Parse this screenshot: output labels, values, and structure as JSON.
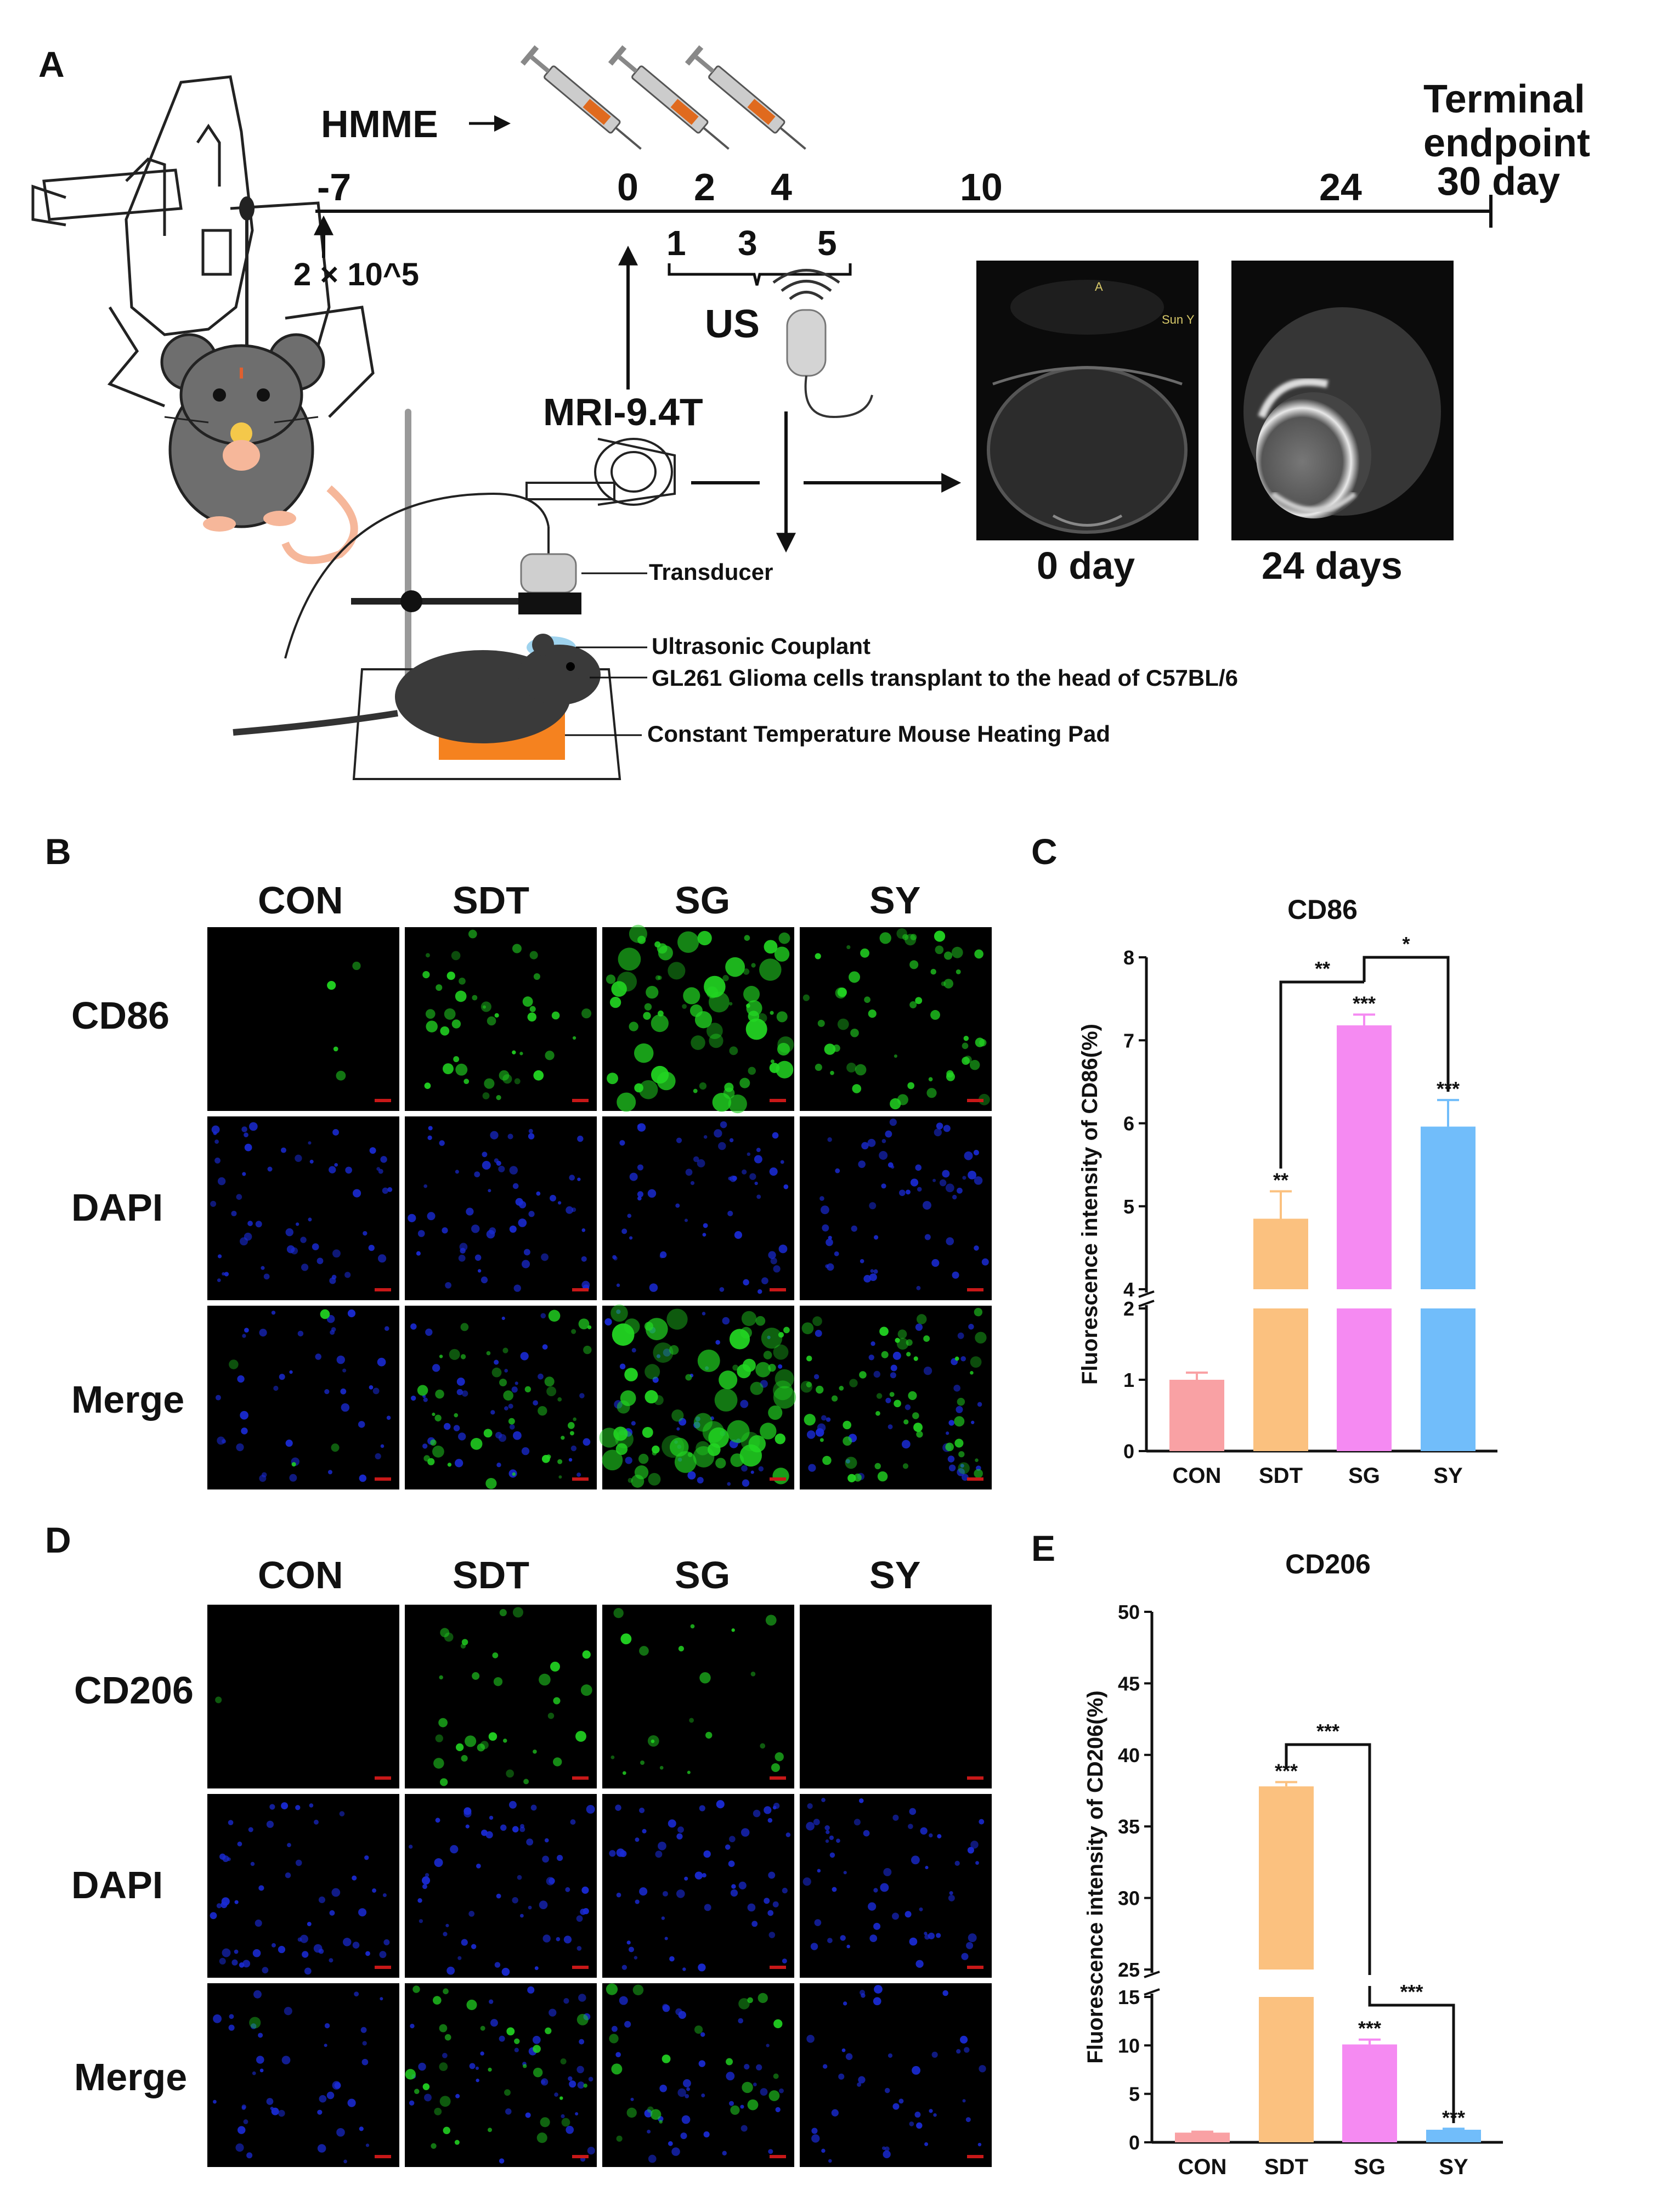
{
  "panels": {
    "a": "A",
    "b": "B",
    "c": "C",
    "d": "D",
    "e": "E"
  },
  "timeline": {
    "drug": "HMME",
    "ticks": [
      "-7",
      "0",
      "2",
      "4",
      "10",
      "24"
    ],
    "end_label_1": "Terminal",
    "end_label_2": "endpoint",
    "end_label_3": "30 day",
    "cell_dose": "2 × 10^5",
    "us_days": [
      "1",
      "3",
      "5"
    ],
    "us_label": "US",
    "mri_label": "MRI-9.4T"
  },
  "setup_labels": {
    "transducer": "Transducer",
    "couplant": "Ultrasonic Couplant",
    "cells": "GL261 Glioma cells transplant to the head of C57BL/6",
    "pad": "Constant Temperature Mouse Heating Pad"
  },
  "mri": {
    "day0": "0 day",
    "day24": "24 days",
    "overlay_a": "A",
    "overlay_sun": "Sun Y"
  },
  "microscopy": {
    "groups": [
      "CON",
      "SDT",
      "SG",
      "SY"
    ],
    "rows_b": [
      "CD86",
      "DAPI",
      "Merge"
    ],
    "rows_d": [
      "CD206",
      "DAPI",
      "Merge"
    ],
    "colors": {
      "green": "#22d622",
      "blue": "#1a2bd6",
      "background": "#000000"
    }
  },
  "chart_data": [
    {
      "type": "bar",
      "title": "CD86",
      "ylabel": "Fluorescence intensity of CD86(%)",
      "categories": [
        "CON",
        "SDT",
        "SG",
        "SY"
      ],
      "values": [
        1.0,
        4.85,
        7.18,
        5.96
      ],
      "errors": [
        0.1,
        0.33,
        0.13,
        0.32
      ],
      "colors": [
        "#f9a1a4",
        "#fbc17f",
        "#f58af2",
        "#71bdfa"
      ],
      "y_axis_break": [
        2,
        4
      ],
      "yticks_lower": [
        "0",
        "1",
        "2"
      ],
      "yticks_upper": [
        "4",
        "5",
        "6",
        "7",
        "8"
      ],
      "ylim": [
        0,
        8
      ],
      "significance_on_bars": [
        "",
        "**",
        "***",
        "***"
      ],
      "brackets": [
        {
          "from": "SDT",
          "to": "SG",
          "label": "**"
        },
        {
          "from": "SG",
          "to": "SY",
          "label": "*"
        }
      ]
    },
    {
      "type": "bar",
      "title": "CD206",
      "ylabel": "Fluorescence intensity of CD206(%)",
      "categories": [
        "CON",
        "SDT",
        "SG",
        "SY"
      ],
      "values": [
        1.0,
        37.8,
        10.1,
        1.3
      ],
      "errors": [
        0.1,
        0.3,
        0.5,
        0.1
      ],
      "colors": [
        "#f9a1a4",
        "#fbc17f",
        "#f58af2",
        "#71bdfa"
      ],
      "y_axis_break": [
        15,
        25
      ],
      "yticks_lower": [
        "0",
        "5",
        "10",
        "15"
      ],
      "yticks_upper": [
        "25",
        "30",
        "35",
        "40",
        "45",
        "50"
      ],
      "ylim": [
        0,
        50
      ],
      "significance_on_bars": [
        "",
        "***",
        "***",
        "***"
      ],
      "brackets": [
        {
          "from": "SDT",
          "to": "SG",
          "label": "***"
        },
        {
          "from": "SG",
          "to": "SY",
          "label": "***"
        }
      ]
    }
  ]
}
